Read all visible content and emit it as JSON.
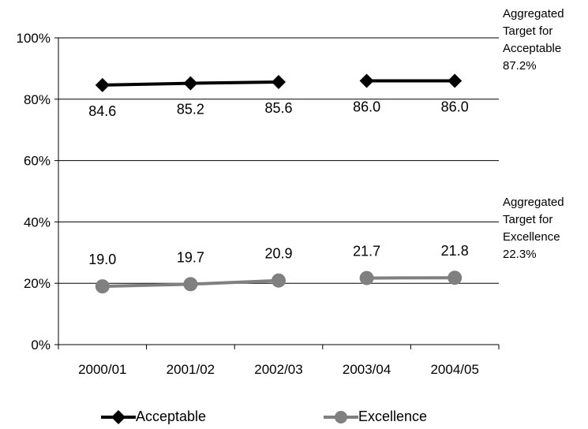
{
  "chart_data": {
    "type": "line",
    "categories": [
      "2000/01",
      "2001/02",
      "2002/03",
      "2003/04",
      "2004/05"
    ],
    "ylim": [
      0,
      100
    ],
    "yticks": [
      "0%",
      "20%",
      "40%",
      "60%",
      "80%",
      "100%"
    ],
    "ytick_values": [
      0,
      20,
      40,
      60,
      80,
      100
    ],
    "grid": true,
    "legend_position": "bottom",
    "series": [
      {
        "name": "Acceptable",
        "values": [
          84.6,
          85.2,
          85.6,
          86.0,
          86.0
        ],
        "labels": [
          "84.6",
          "85.2",
          "85.6",
          "86.0",
          "86.0"
        ],
        "segments": [
          [
            0,
            2
          ],
          [
            3,
            4
          ]
        ],
        "color": "#000000",
        "marker": "diamond"
      },
      {
        "name": "Excellence",
        "values": [
          19.0,
          19.7,
          20.9,
          21.7,
          21.8
        ],
        "labels": [
          "19.0",
          "19.7",
          "20.9",
          "21.7",
          "21.8"
        ],
        "segments": [
          [
            0,
            2
          ],
          [
            3,
            4
          ]
        ],
        "color": "#808080",
        "marker": "circle"
      }
    ],
    "annotations": [
      {
        "lines": [
          "Aggregated",
          "Target for",
          "Acceptable",
          "87.2%"
        ]
      },
      {
        "lines": [
          "Aggregated",
          "Target for",
          "Excellence",
          "22.3%"
        ]
      }
    ]
  }
}
